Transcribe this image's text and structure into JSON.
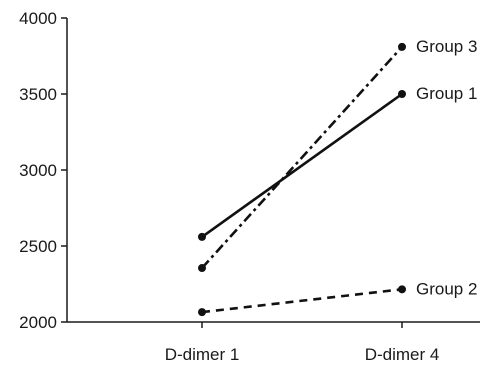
{
  "chart_data": {
    "type": "line",
    "title": "",
    "xlabel": "",
    "ylabel": "",
    "categories": [
      "D-dimer 1",
      "D-dimer 4"
    ],
    "ylim": [
      2000,
      4000
    ],
    "yticks": [
      2000,
      2500,
      3000,
      3500,
      4000
    ],
    "grid": false,
    "legend": "none",
    "series": [
      {
        "name": "Group 1",
        "values": [
          2560,
          3500
        ],
        "style": "solid",
        "color": "#111111"
      },
      {
        "name": "Group 2",
        "values": [
          2065,
          2215
        ],
        "style": "dashed",
        "color": "#111111"
      },
      {
        "name": "Group 3",
        "values": [
          2355,
          3810
        ],
        "style": "dash-dot",
        "color": "#111111"
      }
    ]
  }
}
